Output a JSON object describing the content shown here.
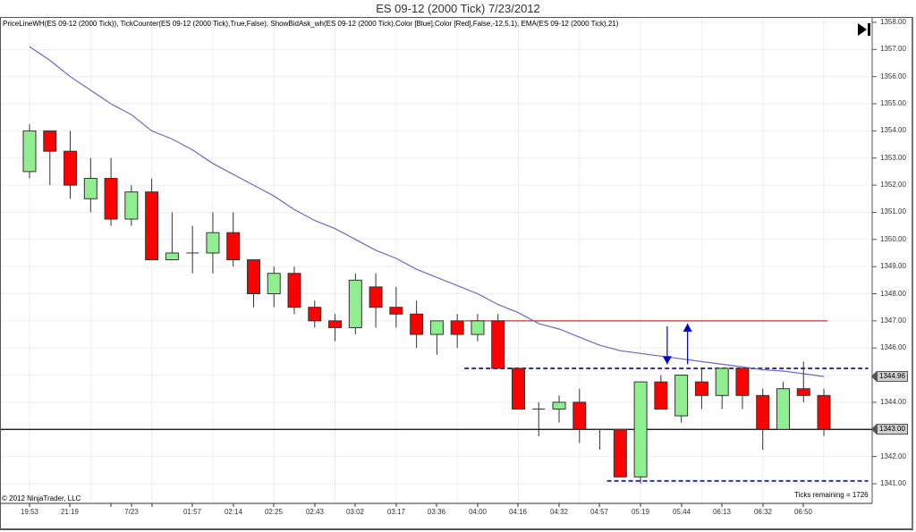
{
  "window": {
    "title": "ES 09-12 (2000 Tick)  7/23/2012"
  },
  "chart": {
    "indicators_label": "PriceLineWH(ES 09-12 (2000 Tick)), TickCounter(ES 09-12 (2000 Tick),True,False), ShowBidAsk_wh(ES 09-12 (2000 Tick),Color [Blue],Color [Red],False,-12,5,1), EMA(ES 09-12 (2000 Tick),21)",
    "copyright": "© 2012 NinjaTrader, LLC",
    "ticks_remaining": "Ticks remaining = 1726",
    "skip_to_end_icon": "skip-to-end-icon",
    "last_price_tag": "1344.96",
    "price_line_tag": "1343.00",
    "colors": {
      "up_candle": "#90EE90",
      "down_candle": "#FF0000",
      "candle_outline": "#333333",
      "ema_line": "#6A6AC8",
      "ask_line": "#E03030",
      "bid_dashed": "#3030C0",
      "arrows": "#0000CC",
      "grid": "#EEEEEE"
    }
  },
  "chart_data": {
    "type": "candlestick",
    "title": "ES 09-12 (2000 Tick)  7/23/2012",
    "xlabel": "",
    "ylabel": "",
    "ylim": [
      1340.3,
      1358.0
    ],
    "grid": true,
    "y_ticks": [
      "1358.00",
      "1357.00",
      "1356.00",
      "1355.00",
      "1354.00",
      "1353.00",
      "1352.00",
      "1351.00",
      "1350.00",
      "1349.00",
      "1348.00",
      "1347.00",
      "1346.00",
      "1345.00",
      "1344.00",
      "1343.00",
      "1342.00",
      "1341.00"
    ],
    "x_ticks": [
      {
        "label": "19:53",
        "bar": 0
      },
      {
        "label": "21:19",
        "bar": 6
      },
      {
        "label": "7/23",
        "bar": 12
      },
      {
        "label": "01:57",
        "bar": 19
      },
      {
        "label": "02:14",
        "bar": 23
      },
      {
        "label": "02:25",
        "bar": 27
      },
      {
        "label": "02:43",
        "bar": 31
      },
      {
        "label": "03:02",
        "bar": 35
      },
      {
        "label": "03:17",
        "bar": 39
      },
      {
        "label": "03:36",
        "bar": 43
      },
      {
        "label": "04:00",
        "bar": 47
      },
      {
        "label": "04:16",
        "bar": 51
      },
      {
        "label": "04:32",
        "bar": 55
      },
      {
        "label": "04:57",
        "bar": 59
      },
      {
        "label": "05:19",
        "bar": 63
      },
      {
        "label": "05:44",
        "bar": 67
      },
      {
        "label": "06:13",
        "bar": 71
      },
      {
        "label": "06:32",
        "bar": 75
      },
      {
        "label": "06:50",
        "bar": 79
      }
    ],
    "ohlc": [
      {
        "o": 1352.5,
        "h": 1354.25,
        "l": 1352.25,
        "c": 1354.0
      },
      {
        "o": 1354.0,
        "h": 1354.0,
        "l": 1352.0,
        "c": 1353.25
      },
      {
        "o": 1353.25,
        "h": 1354.0,
        "l": 1351.5,
        "c": 1352.0
      },
      {
        "o": 1351.5,
        "h": 1353.0,
        "l": 1351.0,
        "c": 1352.25
      },
      {
        "o": 1352.25,
        "h": 1353.0,
        "l": 1350.5,
        "c": 1350.75
      },
      {
        "o": 1350.75,
        "h": 1352.0,
        "l": 1350.5,
        "c": 1351.75
      },
      {
        "o": 1351.75,
        "h": 1352.25,
        "l": 1349.25,
        "c": 1349.25
      },
      {
        "o": 1349.25,
        "h": 1351.0,
        "l": 1349.25,
        "c": 1349.5
      },
      {
        "o": 1349.5,
        "h": 1350.5,
        "l": 1348.75,
        "c": 1349.5
      },
      {
        "o": 1349.5,
        "h": 1351.0,
        "l": 1348.75,
        "c": 1350.25
      },
      {
        "o": 1350.25,
        "h": 1351.0,
        "l": 1349.0,
        "c": 1349.25
      },
      {
        "o": 1349.25,
        "h": 1349.25,
        "l": 1347.5,
        "c": 1348.0
      },
      {
        "o": 1348.0,
        "h": 1349.0,
        "l": 1347.5,
        "c": 1348.75
      },
      {
        "o": 1348.75,
        "h": 1349.0,
        "l": 1347.25,
        "c": 1347.5
      },
      {
        "o": 1347.5,
        "h": 1347.75,
        "l": 1346.75,
        "c": 1347.0
      },
      {
        "o": 1347.0,
        "h": 1347.25,
        "l": 1346.25,
        "c": 1346.75
      },
      {
        "o": 1346.75,
        "h": 1348.75,
        "l": 1346.5,
        "c": 1348.5
      },
      {
        "o": 1348.25,
        "h": 1348.75,
        "l": 1346.75,
        "c": 1347.5
      },
      {
        "o": 1347.5,
        "h": 1348.25,
        "l": 1346.75,
        "c": 1347.25
      },
      {
        "o": 1347.25,
        "h": 1347.75,
        "l": 1346.0,
        "c": 1346.5
      },
      {
        "o": 1346.5,
        "h": 1347.0,
        "l": 1345.75,
        "c": 1347.0
      },
      {
        "o": 1347.0,
        "h": 1347.25,
        "l": 1346.0,
        "c": 1346.5
      },
      {
        "o": 1346.5,
        "h": 1347.25,
        "l": 1346.25,
        "c": 1347.0
      },
      {
        "o": 1347.0,
        "h": 1347.25,
        "l": 1345.25,
        "c": 1345.25
      },
      {
        "o": 1345.25,
        "h": 1345.25,
        "l": 1343.75,
        "c": 1343.75
      },
      {
        "o": 1343.75,
        "h": 1344.0,
        "l": 1342.75,
        "c": 1343.75
      },
      {
        "o": 1343.75,
        "h": 1344.25,
        "l": 1343.25,
        "c": 1344.0
      },
      {
        "o": 1344.0,
        "h": 1344.5,
        "l": 1342.5,
        "c": 1343.0
      },
      {
        "o": 1343.0,
        "h": 1343.0,
        "l": 1342.25,
        "c": 1343.0
      },
      {
        "o": 1343.0,
        "h": 1343.0,
        "l": 1341.25,
        "c": 1341.25
      },
      {
        "o": 1341.25,
        "h": 1344.75,
        "l": 1341.0,
        "c": 1344.75
      },
      {
        "o": 1344.75,
        "h": 1345.0,
        "l": 1343.75,
        "c": 1343.75
      },
      {
        "o": 1343.5,
        "h": 1345.0,
        "l": 1343.25,
        "c": 1345.0
      },
      {
        "o": 1344.75,
        "h": 1345.25,
        "l": 1343.75,
        "c": 1344.25
      },
      {
        "o": 1344.25,
        "h": 1345.25,
        "l": 1343.75,
        "c": 1345.25
      },
      {
        "o": 1345.25,
        "h": 1345.25,
        "l": 1343.75,
        "c": 1344.25
      },
      {
        "o": 1344.25,
        "h": 1344.5,
        "l": 1342.25,
        "c": 1343.0
      },
      {
        "o": 1343.0,
        "h": 1344.75,
        "l": 1343.0,
        "c": 1344.5
      },
      {
        "o": 1344.5,
        "h": 1345.5,
        "l": 1344.0,
        "c": 1344.25
      },
      {
        "o": 1344.25,
        "h": 1344.5,
        "l": 1342.75,
        "c": 1343.0
      }
    ],
    "series": [
      {
        "name": "EMA(ES 09-12 (2000 Tick),21)",
        "type": "line",
        "values": [
          1357.1,
          1356.6,
          1356.0,
          1355.5,
          1355.0,
          1354.6,
          1354.0,
          1353.7,
          1353.3,
          1352.8,
          1352.4,
          1352.0,
          1351.6,
          1351.1,
          1350.7,
          1350.4,
          1350.0,
          1349.6,
          1349.3,
          1348.9,
          1348.6,
          1348.3,
          1348.0,
          1347.6,
          1347.3,
          1346.9,
          1346.7,
          1346.4,
          1346.1,
          1345.9,
          1345.8,
          1345.7,
          1345.6,
          1345.5,
          1345.4,
          1345.3,
          1345.2,
          1345.15,
          1345.05,
          1344.95
        ]
      }
    ],
    "annotations": [
      {
        "type": "hline",
        "name": "ask-line",
        "value": 1347.0,
        "from_bar": 21,
        "to_bar": 39,
        "color": "#E03030",
        "style": "solid"
      },
      {
        "type": "hline",
        "name": "upper-dashed",
        "value": 1345.25,
        "from_bar": 21,
        "to_bar": 41,
        "color": "#3030C0",
        "style": "dashed"
      },
      {
        "type": "hline",
        "name": "lower-dashed",
        "value": 1341.1,
        "from_bar": 28,
        "to_bar": 41,
        "color": "#3030C0",
        "style": "dashed"
      },
      {
        "type": "hline",
        "name": "price-line",
        "value": 1343.0,
        "color": "#000000",
        "style": "solid"
      },
      {
        "type": "arrow",
        "direction": "down",
        "bar": 31,
        "from": 1346.8,
        "to": 1345.4
      },
      {
        "type": "arrow",
        "direction": "up",
        "bar": 32,
        "from": 1345.4,
        "to": 1346.9
      }
    ],
    "price_tags": [
      {
        "value": 1344.96,
        "label": "1344.96"
      },
      {
        "value": 1343.0,
        "label": "1343.00"
      }
    ],
    "footer_texts": [
      "© 2012 NinjaTrader, LLC",
      "Ticks remaining = 1726"
    ]
  }
}
